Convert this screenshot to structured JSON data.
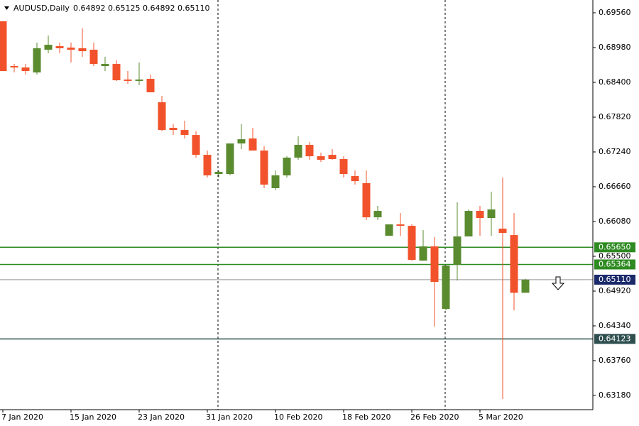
{
  "header": {
    "symbol": "AUDUSD,Daily",
    "ohlc": [
      "0.64892",
      "0.65125",
      "0.64892",
      "0.65110"
    ]
  },
  "chart_data": {
    "type": "candlestick",
    "categories": [
      "7 Jan 2020",
      null,
      null,
      null,
      null,
      null,
      "15 Jan 2020",
      null,
      null,
      null,
      null,
      null,
      "23 Jan 2020",
      null,
      null,
      null,
      null,
      null,
      "31 Jan 2020",
      null,
      null,
      null,
      null,
      null,
      "10 Feb 2020",
      null,
      null,
      null,
      null,
      null,
      "18 Feb 2020",
      null,
      null,
      null,
      null,
      null,
      "26 Feb 2020",
      null,
      null,
      null,
      null,
      null,
      "5 Mar 2020",
      null,
      null,
      null,
      null
    ],
    "open": [
      0.69418,
      0.68672,
      0.68648,
      0.68565,
      0.68944,
      0.69003,
      0.6898,
      0.68968,
      0.68944,
      0.68672,
      0.68707,
      0.68447,
      0.68424,
      0.68459,
      0.68068,
      0.67642,
      0.67606,
      0.67523,
      0.67192,
      0.66872,
      0.66872,
      0.67381,
      0.67464,
      0.67263,
      0.66636,
      0.66849,
      0.67145,
      0.67358,
      0.67168,
      0.67192,
      0.67121,
      0.66837,
      0.66719,
      0.6615,
      0.65842,
      0.66032,
      0.66008,
      0.65428,
      0.65665,
      0.64622,
      0.65357,
      0.65831,
      0.66257,
      0.66139,
      0.65961,
      0.65854,
      0.64892
    ],
    "high": [
      0.69418,
      0.68707,
      0.68707,
      0.69063,
      0.69181,
      0.69063,
      0.69063,
      0.69299,
      0.69063,
      0.68826,
      0.68767,
      0.68589,
      0.68731,
      0.6853,
      0.68175,
      0.67701,
      0.6776,
      0.67583,
      0.67263,
      0.66931,
      0.67334,
      0.67701,
      0.67642,
      0.67334,
      0.66931,
      0.67168,
      0.675,
      0.67405,
      0.67227,
      0.67287,
      0.67168,
      0.66931,
      0.66931,
      0.6634,
      0.66032,
      0.66221,
      0.66032,
      0.65937,
      0.65819,
      0.65357,
      0.66399,
      0.66281,
      0.6634,
      0.66577,
      0.66813,
      0.66221,
      0.65125
    ],
    "low": [
      0.68589,
      0.68565,
      0.6853,
      0.6853,
      0.68885,
      0.68885,
      0.68731,
      0.68826,
      0.68672,
      0.68589,
      0.68424,
      0.68376,
      0.68353,
      0.68234,
      0.67583,
      0.67523,
      0.67464,
      0.67145,
      0.66813,
      0.66813,
      0.66849,
      0.67287,
      0.67287,
      0.66636,
      0.666,
      0.66813,
      0.67109,
      0.67109,
      0.67074,
      0.67109,
      0.66813,
      0.66695,
      0.66103,
      0.66103,
      0.65842,
      0.65842,
      0.65428,
      0.65428,
      0.64327,
      0.64599,
      0.65096,
      0.65831,
      0.65842,
      0.65842,
      0.63119,
      0.64599,
      0.64892
    ],
    "close": [
      0.68589,
      0.68648,
      0.68589,
      0.68968,
      0.69027,
      0.68968,
      0.68944,
      0.6892,
      0.68707,
      0.68707,
      0.68435,
      0.68424,
      0.68447,
      0.68234,
      0.67606,
      0.67606,
      0.67523,
      0.67192,
      0.66849,
      0.66908,
      0.67381,
      0.67452,
      0.67263,
      0.66695,
      0.66849,
      0.67145,
      0.67358,
      0.67168,
      0.67109,
      0.67121,
      0.66872,
      0.66754,
      0.6615,
      0.66257,
      0.66032,
      0.66008,
      0.6544,
      0.65665,
      0.65073,
      0.65345,
      0.65831,
      0.66257,
      0.66139,
      0.66281,
      0.6589,
      0.64892,
      0.6511
    ],
    "up_color": "#5a8b2f",
    "down_color": "#f2522b",
    "ylim": [
      0.62943,
      0.69773
    ],
    "yticks": [
      {
        "value": 0.6956,
        "label": "0.69560"
      },
      {
        "value": 0.6898,
        "label": "0.68980"
      },
      {
        "value": 0.684,
        "label": "0.68400"
      },
      {
        "value": 0.6782,
        "label": "0.67820"
      },
      {
        "value": 0.6724,
        "label": "0.67240"
      },
      {
        "value": 0.6666,
        "label": "0.66660"
      },
      {
        "value": 0.6608,
        "label": "0.66080"
      },
      {
        "value": 0.655,
        "label": "0.65500"
      },
      {
        "value": 0.6492,
        "label": "0.64920"
      },
      {
        "value": 0.6434,
        "label": "0.64340"
      },
      {
        "value": 0.6376,
        "label": "0.63760"
      },
      {
        "value": 0.6318,
        "label": "0.63180"
      }
    ],
    "horizontal_lines": [
      {
        "value": 0.6565,
        "label": "0.65650",
        "line_color": "#2e8b22",
        "box_color": "#2e8b22"
      },
      {
        "value": 0.65364,
        "label": "0.65364",
        "line_color": "#2e8b22",
        "box_color": "#2e8b22"
      },
      {
        "value": 0.6511,
        "label": "0.65110",
        "line_color": "#b4b4b4",
        "box_color": "#1b2a6b"
      },
      {
        "value": 0.64123,
        "label": "0.64123",
        "line_color": "#2f4f4f",
        "box_color": "#2f4f4f"
      }
    ]
  }
}
